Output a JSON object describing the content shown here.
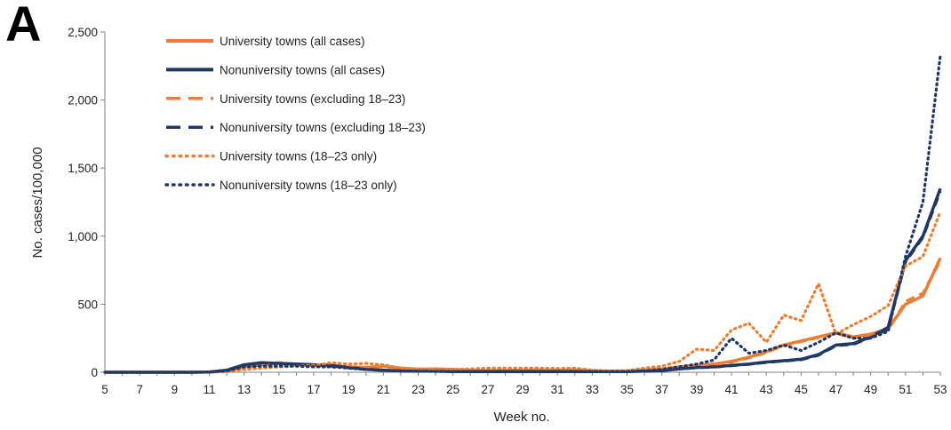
{
  "panel_label": "A",
  "chart_data": {
    "type": "line",
    "title": "",
    "xlabel": "Week no.",
    "ylabel": "No. cases/100,000",
    "xlim": [
      5,
      53
    ],
    "ylim": [
      0,
      2500
    ],
    "x_ticks": [
      5,
      7,
      9,
      11,
      13,
      15,
      17,
      19,
      21,
      23,
      25,
      27,
      29,
      31,
      33,
      35,
      37,
      39,
      41,
      43,
      45,
      47,
      49,
      51,
      53
    ],
    "y_ticks": [
      0,
      500,
      1000,
      1500,
      2000,
      2500
    ],
    "y_tick_labels": [
      "0",
      "500",
      "1,000",
      "1,500",
      "2,000",
      "2,500"
    ],
    "grid": false,
    "legend_position": "top-left",
    "x": [
      5,
      6,
      7,
      8,
      9,
      10,
      11,
      12,
      13,
      14,
      15,
      16,
      17,
      18,
      19,
      20,
      21,
      22,
      23,
      24,
      25,
      26,
      27,
      28,
      29,
      30,
      31,
      32,
      33,
      34,
      35,
      36,
      37,
      38,
      39,
      40,
      41,
      42,
      43,
      44,
      45,
      46,
      47,
      48,
      49,
      50,
      51,
      52,
      53
    ],
    "series": [
      {
        "name": "University towns (all cases)",
        "color": "#ED7D31",
        "style": "solid",
        "values": [
          0,
          0,
          0,
          0,
          0,
          0,
          2,
          8,
          40,
          55,
          68,
          55,
          55,
          45,
          40,
          35,
          45,
          30,
          22,
          25,
          20,
          15,
          12,
          14,
          15,
          16,
          15,
          18,
          12,
          8,
          10,
          18,
          25,
          40,
          50,
          60,
          80,
          110,
          150,
          200,
          230,
          260,
          290,
          260,
          280,
          320,
          500,
          560,
          840
        ]
      },
      {
        "name": "Nonuniversity towns (all cases)",
        "color": "#1F3864",
        "style": "solid",
        "values": [
          0,
          0,
          0,
          0,
          0,
          0,
          2,
          15,
          55,
          70,
          65,
          60,
          55,
          50,
          35,
          22,
          15,
          10,
          8,
          8,
          6,
          5,
          5,
          5,
          5,
          5,
          5,
          5,
          5,
          5,
          5,
          8,
          12,
          25,
          35,
          40,
          50,
          60,
          75,
          85,
          95,
          130,
          200,
          210,
          260,
          330,
          820,
          1000,
          1350
        ]
      },
      {
        "name": "University towns (excluding 18–23)",
        "color": "#ED7D31",
        "style": "dash",
        "values": [
          0,
          0,
          0,
          0,
          0,
          0,
          2,
          8,
          40,
          55,
          72,
          55,
          55,
          42,
          38,
          35,
          42,
          28,
          20,
          22,
          18,
          14,
          10,
          12,
          13,
          14,
          13,
          16,
          10,
          6,
          8,
          15,
          22,
          38,
          48,
          55,
          75,
          105,
          145,
          195,
          225,
          255,
          285,
          255,
          275,
          310,
          520,
          580,
          820
        ]
      },
      {
        "name": "Nonuniversity towns (excluding 18–23)",
        "color": "#1F3864",
        "style": "dash",
        "values": [
          0,
          0,
          0,
          0,
          0,
          0,
          2,
          15,
          55,
          70,
          65,
          60,
          55,
          48,
          33,
          20,
          14,
          9,
          7,
          7,
          6,
          5,
          5,
          5,
          5,
          5,
          5,
          5,
          5,
          5,
          5,
          8,
          12,
          25,
          33,
          38,
          48,
          58,
          72,
          82,
          92,
          125,
          195,
          205,
          255,
          320,
          810,
          990,
          1330
        ]
      },
      {
        "name": "University towns (18–23 only)",
        "color": "#ED7D31",
        "style": "dot",
        "values": [
          0,
          0,
          0,
          0,
          0,
          0,
          2,
          5,
          20,
          30,
          40,
          45,
          50,
          70,
          60,
          65,
          55,
          30,
          25,
          20,
          20,
          25,
          30,
          30,
          30,
          30,
          28,
          30,
          15,
          10,
          12,
          30,
          45,
          80,
          170,
          160,
          310,
          360,
          220,
          420,
          380,
          650,
          280,
          350,
          410,
          490,
          780,
          850,
          1180
        ]
      },
      {
        "name": "Nonuniversity towns (18–23 only)",
        "color": "#1F3864",
        "style": "dot",
        "values": [
          0,
          0,
          0,
          0,
          0,
          0,
          2,
          10,
          40,
          45,
          45,
          45,
          40,
          40,
          30,
          20,
          15,
          10,
          8,
          6,
          5,
          5,
          5,
          5,
          5,
          5,
          5,
          5,
          5,
          5,
          5,
          10,
          20,
          40,
          60,
          90,
          250,
          140,
          160,
          200,
          160,
          220,
          290,
          250,
          250,
          300,
          850,
          1250,
          2330
        ]
      }
    ]
  }
}
